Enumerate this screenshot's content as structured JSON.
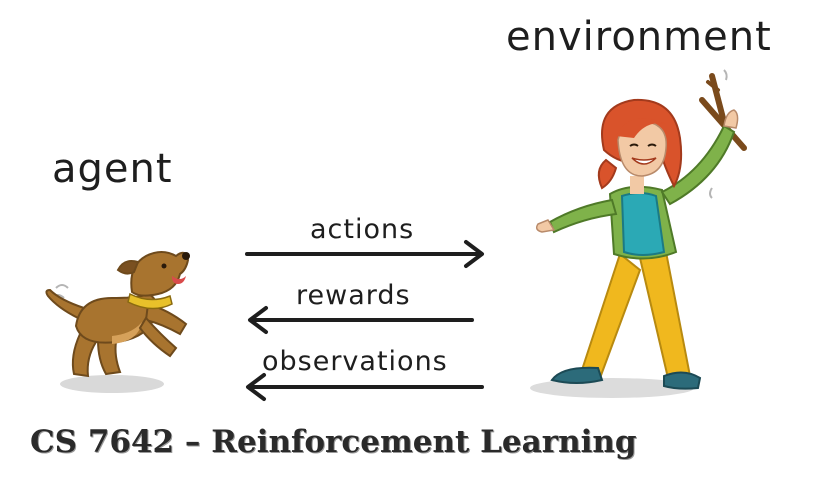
{
  "diagram": {
    "environment_label": "environment",
    "agent_label": "agent",
    "arrows": {
      "actions": "actions",
      "rewards": "rewards",
      "observations": "observations"
    }
  },
  "caption": "CS 7642 – Reinforcement Learning",
  "icons": {
    "agent": "dog-icon",
    "environment": "woman-with-stick-icon"
  },
  "colors": {
    "dog_fur": "#a8742f",
    "dog_collar": "#e8c12a",
    "woman_hair": "#d9532b",
    "woman_shirt": "#2ba9b5",
    "woman_jacket": "#7fb24a",
    "woman_pants": "#f0b81e",
    "text": "#1e1e1e"
  }
}
